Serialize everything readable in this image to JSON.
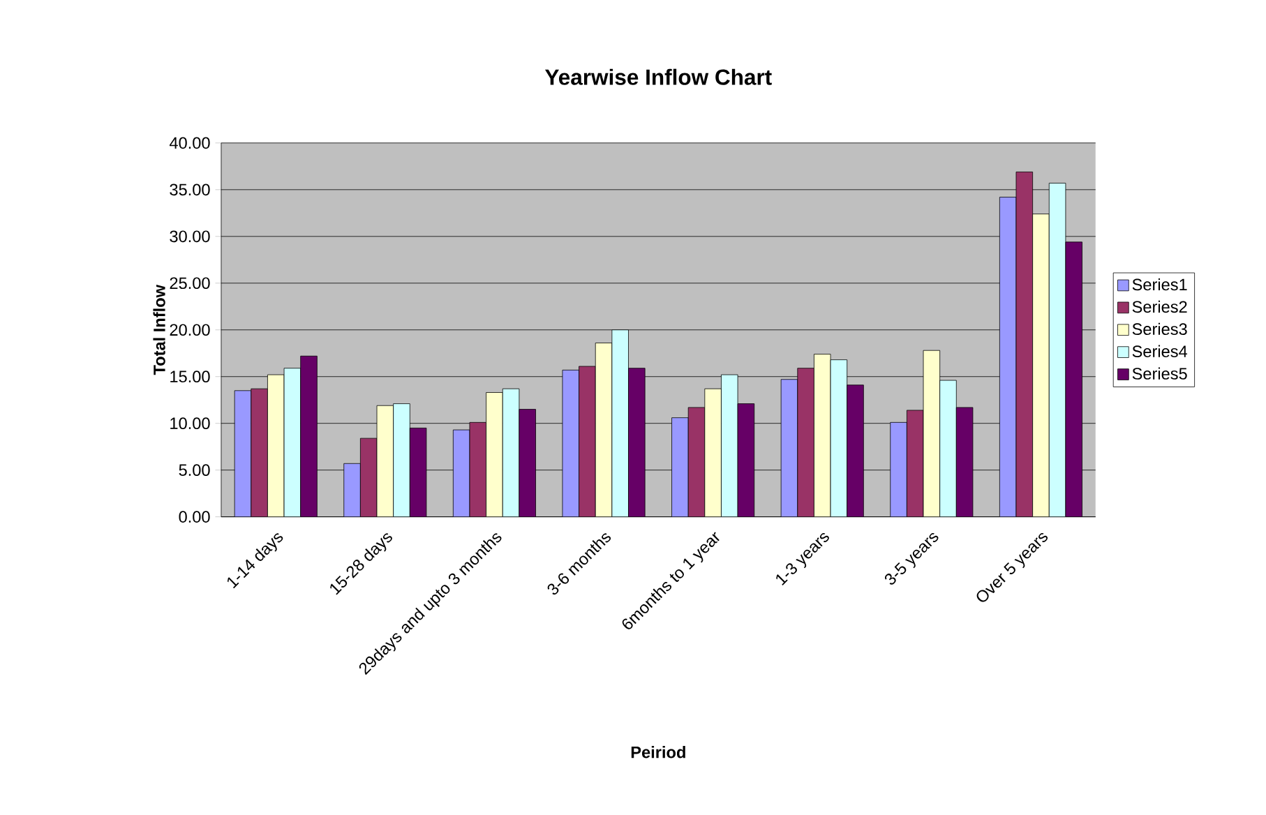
{
  "chart_data": {
    "type": "bar",
    "title": "Yearwise Inflow Chart",
    "xlabel": "Peiriod",
    "ylabel": "Total Inflow",
    "categories": [
      "1-14 days",
      "15-28 days",
      "29days and upto 3 months",
      "3-6 months",
      "6months to 1 year",
      "1-3 years",
      "3-5 years",
      "Over 5 years"
    ],
    "series": [
      {
        "name": "Series1",
        "color": "#9999ff",
        "values": [
          13.5,
          5.7,
          9.3,
          15.7,
          10.6,
          14.7,
          10.1,
          34.2
        ]
      },
      {
        "name": "Series2",
        "color": "#993366",
        "values": [
          13.7,
          8.4,
          10.1,
          16.1,
          11.7,
          15.9,
          11.4,
          36.9
        ]
      },
      {
        "name": "Series3",
        "color": "#ffffcc",
        "values": [
          15.2,
          11.9,
          13.3,
          18.6,
          13.7,
          17.4,
          17.8,
          32.4
        ]
      },
      {
        "name": "Series4",
        "color": "#ccffff",
        "values": [
          15.9,
          12.1,
          13.7,
          20.0,
          15.2,
          16.8,
          14.6,
          35.7
        ]
      },
      {
        "name": "Series5",
        "color": "#660066",
        "values": [
          17.2,
          9.5,
          11.5,
          15.9,
          12.1,
          14.1,
          11.7,
          29.4
        ]
      }
    ],
    "ylim": [
      0,
      40
    ],
    "yticks": [
      {
        "value": 0,
        "label": "0.00"
      },
      {
        "value": 5,
        "label": "5.00"
      },
      {
        "value": 10,
        "label": "10.00"
      },
      {
        "value": 15,
        "label": "15.00"
      },
      {
        "value": 20,
        "label": "20.00"
      },
      {
        "value": 25,
        "label": "25.00"
      },
      {
        "value": 30,
        "label": "30.00"
      },
      {
        "value": 35,
        "label": "35.00"
      },
      {
        "value": 40,
        "label": "40.00"
      }
    ],
    "grid": "y",
    "legend": "right"
  }
}
